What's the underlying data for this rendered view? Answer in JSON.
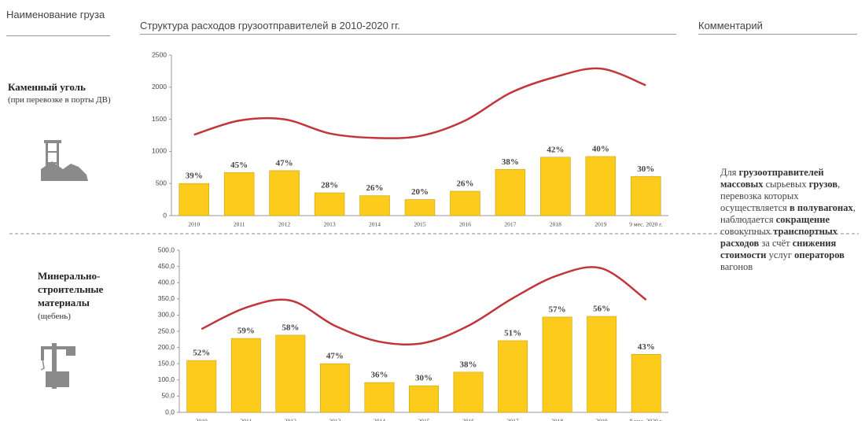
{
  "header": {
    "cargo": "Наименование груза",
    "structure": "Структура расходов грузоотправителей в 2010-2020 гг.",
    "comment": "Комментарий"
  },
  "rows": [
    {
      "title": "Каменный уголь",
      "subtitle": "(при перевозке в порты ДВ)"
    },
    {
      "title": "Минерально-строительные материалы",
      "subtitle": "(щебень)"
    }
  ],
  "chart_data": [
    {
      "type": "bar_line",
      "categories": [
        "2010",
        "2011",
        "2012",
        "2013",
        "2014",
        "2015",
        "2016",
        "2017",
        "2018",
        "2019",
        "9 мес. 2020 г."
      ],
      "series": [
        {
          "color": "#fccb1c",
          "values": [
            500,
            670,
            700,
            355,
            310,
            250,
            380,
            720,
            910,
            920,
            610
          ],
          "value_labels": [
            "39%",
            "45%",
            "47%",
            "28%",
            "26%",
            "20%",
            "26%",
            "38%",
            "42%",
            "40%",
            "30%"
          ]
        },
        {
          "type": "line",
          "color": "#c0363a",
          "values": [
            1260,
            1480,
            1500,
            1280,
            1210,
            1240,
            1480,
            1910,
            2160,
            2290,
            2030
          ]
        }
      ],
      "ylim": [
        0,
        2500
      ],
      "yticks": [
        0,
        500,
        1000,
        1500,
        2000,
        2500
      ]
    },
    {
      "type": "bar_line",
      "categories": [
        "2010",
        "2011",
        "2012",
        "2013",
        "2014",
        "2015",
        "2016",
        "2017",
        "2018",
        "2019",
        "9 мес. 2020 г."
      ],
      "series": [
        {
          "color": "#fccb1c",
          "values": [
            160,
            228,
            238,
            150,
            92,
            82,
            124,
            221,
            294,
            296,
            179
          ],
          "value_labels": [
            "52%",
            "59%",
            "58%",
            "47%",
            "36%",
            "30%",
            "38%",
            "51%",
            "57%",
            "56%",
            "43%"
          ]
        },
        {
          "type": "line",
          "color": "#c0363a",
          "values": [
            257,
            323,
            345,
            267,
            218,
            214,
            267,
            352,
            422,
            444,
            347
          ]
        }
      ],
      "ylim": [
        0,
        500
      ],
      "yticks": [
        {
          "value": 0,
          "label": "0,0"
        },
        {
          "value": 50,
          "label": "50,0"
        },
        {
          "value": 100,
          "label": "100,0"
        },
        {
          "value": 150,
          "label": "150,0"
        },
        {
          "value": 200,
          "label": "200,0"
        },
        {
          "value": 250,
          "label": "250,0"
        },
        {
          "value": 300,
          "label": "300,0"
        },
        {
          "value": 350,
          "label": "350,0"
        },
        {
          "value": 400,
          "label": "400,0"
        },
        {
          "value": 450,
          "label": "450,0"
        },
        {
          "value": 500,
          "label": "500,0"
        }
      ]
    }
  ],
  "comment": {
    "segments": [
      {
        "text": "Для ",
        "bold": false
      },
      {
        "text": "грузоотправителей массовых",
        "bold": true
      },
      {
        "text": " сырьевых ",
        "bold": false
      },
      {
        "text": "грузов",
        "bold": true
      },
      {
        "text": ", перевозка которых осуществляется ",
        "bold": false
      },
      {
        "text": "в полувагонах",
        "bold": true
      },
      {
        "text": ", наблюдается ",
        "bold": false
      },
      {
        "text": "сокращение",
        "bold": true
      },
      {
        "text": " совокупных ",
        "bold": false
      },
      {
        "text": "транспортных расходов",
        "bold": true
      },
      {
        "text": " за счёт ",
        "bold": false
      },
      {
        "text": "снижения стоимости",
        "bold": true
      },
      {
        "text": " услуг ",
        "bold": false
      },
      {
        "text": "операторов",
        "bold": true
      },
      {
        "text": " вагонов",
        "bold": false
      }
    ]
  }
}
